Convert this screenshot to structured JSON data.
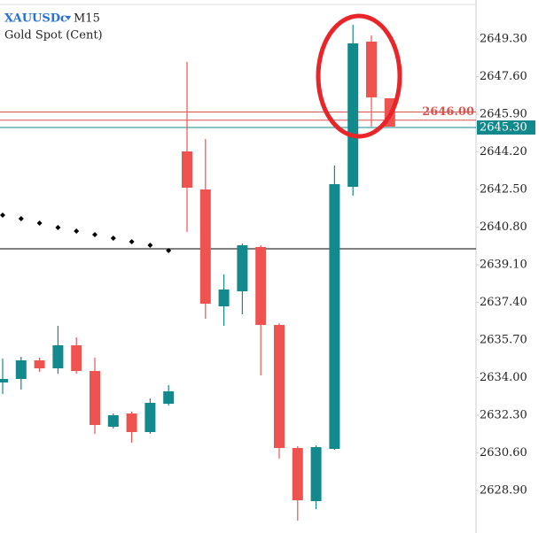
{
  "chart_data": {
    "type": "candlestick",
    "title": "XAUUSDc",
    "timeframe": "M15",
    "subtitle": "Gold Spot (Cent)",
    "up_color": "#12898c",
    "down_color": "#ef5350",
    "series": {
      "open": [
        2633.78,
        2633.94,
        2634.78,
        2634.42,
        2635.46,
        2634.3,
        2631.78,
        2632.38,
        2631.54,
        2632.82,
        2644.22,
        2642.5,
        2637.22,
        2637.9,
        2639.9,
        2636.38,
        2630.82,
        2628.42,
        2630.78,
        2642.62,
        2649.18,
        2646.62
      ],
      "high": [
        2634.86,
        2634.94,
        2634.9,
        2636.34,
        2635.82,
        2634.9,
        2632.38,
        2632.46,
        2633.06,
        2633.66,
        2648.26,
        2644.78,
        2638.66,
        2640.06,
        2639.98,
        2636.46,
        2630.9,
        2630.94,
        2643.58,
        2649.94,
        2649.46,
        2646.62
      ],
      "low": [
        2633.26,
        2633.46,
        2634.26,
        2634.18,
        2634.18,
        2631.46,
        2631.7,
        2631.06,
        2631.46,
        2632.74,
        2640.58,
        2636.66,
        2636.34,
        2636.86,
        2634.1,
        2630.34,
        2627.54,
        2628.06,
        2630.74,
        2642.22,
        2645.34,
        2645.34
      ],
      "close": [
        2633.94,
        2634.78,
        2634.42,
        2635.46,
        2634.3,
        2631.86,
        2632.3,
        2631.54,
        2632.86,
        2633.38,
        2642.58,
        2637.34,
        2637.98,
        2639.98,
        2636.38,
        2630.82,
        2628.46,
        2630.86,
        2642.74,
        2649.1,
        2646.66,
        2645.34
      ]
    },
    "indicator": {
      "color": "#000000",
      "values": [
        2641.34,
        2641.18,
        2640.98,
        2640.78,
        2640.62,
        2640.46,
        2640.3,
        2640.14,
        2639.98,
        2639.74,
        null,
        null,
        null,
        null,
        null,
        null,
        null,
        null,
        null,
        null,
        null,
        null
      ]
    },
    "price_lines": [
      {
        "value": 2646.0,
        "label": "2646.00",
        "color": "#d9534f"
      },
      {
        "value": 2645.63,
        "color": "#d9534f"
      },
      {
        "value": 2645.3,
        "label": "2645.30",
        "color": "#12898c"
      },
      {
        "value": 2639.82,
        "color": "#000000"
      }
    ],
    "ylim": [
      2627.46,
      2651.06
    ],
    "yticks": [
      {
        "value": 2649.3,
        "label": "2649.30"
      },
      {
        "value": 2647.6,
        "label": "2647.60"
      },
      {
        "value": 2645.9,
        "label": "2645.90"
      },
      {
        "value": 2644.2,
        "label": "2644.20"
      },
      {
        "value": 2642.5,
        "label": "2642.50"
      },
      {
        "value": 2640.8,
        "label": "2640.80"
      },
      {
        "value": 2639.1,
        "label": "2639.10"
      },
      {
        "value": 2637.4,
        "label": "2637.40"
      },
      {
        "value": 2635.7,
        "label": "2635.70"
      },
      {
        "value": 2634.0,
        "label": "2634.00"
      },
      {
        "value": 2632.3,
        "label": "2632.30"
      },
      {
        "value": 2630.6,
        "label": "2630.60"
      },
      {
        "value": 2628.9,
        "label": "2628.90"
      }
    ]
  }
}
